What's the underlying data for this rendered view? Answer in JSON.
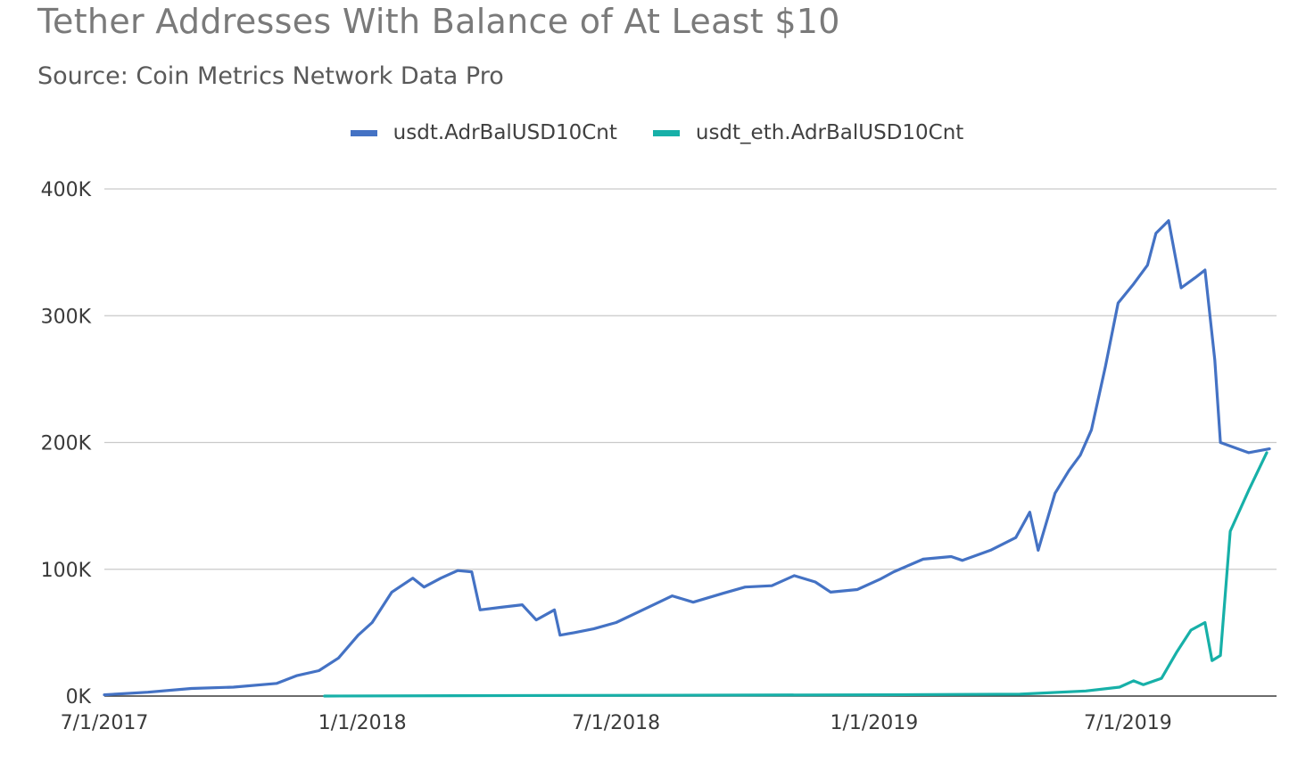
{
  "chart_data": {
    "type": "line",
    "title": "Tether Addresses With Balance of At Least $10",
    "subtitle": "Source: Coin Metrics Network Data Pro",
    "legend_position": "top-center",
    "grid": true,
    "y_ticks": [
      {
        "value": 0,
        "label": "0K"
      },
      {
        "value": 100000,
        "label": "100K"
      },
      {
        "value": 200000,
        "label": "200K"
      },
      {
        "value": 300000,
        "label": "300K"
      },
      {
        "value": 400000,
        "label": "400K"
      }
    ],
    "x_ticks": [
      {
        "value": "2017-07-01",
        "label": "7/1/2017"
      },
      {
        "value": "2018-01-01",
        "label": "1/1/2018"
      },
      {
        "value": "2018-07-01",
        "label": "7/1/2018"
      },
      {
        "value": "2019-01-01",
        "label": "1/1/2019"
      },
      {
        "value": "2019-07-01",
        "label": "7/1/2019"
      }
    ],
    "xlim": [
      "2017-07-01",
      "2019-10-15"
    ],
    "ylim": [
      0,
      400000
    ],
    "series": [
      {
        "name": "usdt.AdrBalUSD10Cnt",
        "color": "#4472c4",
        "points": [
          [
            "2017-07-01",
            1000
          ],
          [
            "2017-08-01",
            3000
          ],
          [
            "2017-09-01",
            6000
          ],
          [
            "2017-10-01",
            7000
          ],
          [
            "2017-11-01",
            10000
          ],
          [
            "2017-11-15",
            16000
          ],
          [
            "2017-12-01",
            20000
          ],
          [
            "2017-12-15",
            30000
          ],
          [
            "2017-12-29",
            48000
          ],
          [
            "2018-01-08",
            58000
          ],
          [
            "2018-01-22",
            82000
          ],
          [
            "2018-02-06",
            93000
          ],
          [
            "2018-02-14",
            86000
          ],
          [
            "2018-02-26",
            93000
          ],
          [
            "2018-03-10",
            99000
          ],
          [
            "2018-03-20",
            98000
          ],
          [
            "2018-03-26",
            68000
          ],
          [
            "2018-04-10",
            70000
          ],
          [
            "2018-04-25",
            72000
          ],
          [
            "2018-05-05",
            60000
          ],
          [
            "2018-05-18",
            68000
          ],
          [
            "2018-05-22",
            48000
          ],
          [
            "2018-06-01",
            50000
          ],
          [
            "2018-06-15",
            53000
          ],
          [
            "2018-07-01",
            58000
          ],
          [
            "2018-07-20",
            68000
          ],
          [
            "2018-08-10",
            79000
          ],
          [
            "2018-08-25",
            74000
          ],
          [
            "2018-09-15",
            81000
          ],
          [
            "2018-10-01",
            86000
          ],
          [
            "2018-10-20",
            87000
          ],
          [
            "2018-11-05",
            95000
          ],
          [
            "2018-11-20",
            90000
          ],
          [
            "2018-12-01",
            82000
          ],
          [
            "2018-12-20",
            84000
          ],
          [
            "2019-01-05",
            92000
          ],
          [
            "2019-01-15",
            98000
          ],
          [
            "2019-02-05",
            108000
          ],
          [
            "2019-02-25",
            110000
          ],
          [
            "2019-03-05",
            107000
          ],
          [
            "2019-03-25",
            115000
          ],
          [
            "2019-04-12",
            125000
          ],
          [
            "2019-04-22",
            145000
          ],
          [
            "2019-04-28",
            115000
          ],
          [
            "2019-05-10",
            160000
          ],
          [
            "2019-05-20",
            178000
          ],
          [
            "2019-05-28",
            190000
          ],
          [
            "2019-06-05",
            210000
          ],
          [
            "2019-06-15",
            260000
          ],
          [
            "2019-06-24",
            310000
          ],
          [
            "2019-07-05",
            325000
          ],
          [
            "2019-07-15",
            340000
          ],
          [
            "2019-07-21",
            365000
          ],
          [
            "2019-07-30",
            375000
          ],
          [
            "2019-08-08",
            322000
          ],
          [
            "2019-08-18",
            330000
          ],
          [
            "2019-08-25",
            336000
          ],
          [
            "2019-09-01",
            265000
          ],
          [
            "2019-09-05",
            200000
          ],
          [
            "2019-09-25",
            192000
          ],
          [
            "2019-10-10",
            195000
          ]
        ]
      },
      {
        "name": "usdt_eth.AdrBalUSD10Cnt",
        "color": "#17b0a8",
        "points": [
          [
            "2017-12-05",
            0
          ],
          [
            "2018-06-01",
            500
          ],
          [
            "2019-01-01",
            1000
          ],
          [
            "2019-04-15",
            1500
          ],
          [
            "2019-06-01",
            4000
          ],
          [
            "2019-06-25",
            7000
          ],
          [
            "2019-07-05",
            12000
          ],
          [
            "2019-07-12",
            9000
          ],
          [
            "2019-07-25",
            14000
          ],
          [
            "2019-08-05",
            35000
          ],
          [
            "2019-08-15",
            52000
          ],
          [
            "2019-08-25",
            58000
          ],
          [
            "2019-08-30",
            28000
          ],
          [
            "2019-09-05",
            32000
          ],
          [
            "2019-09-12",
            130000
          ],
          [
            "2019-09-25",
            162000
          ],
          [
            "2019-10-08",
            192000
          ]
        ]
      }
    ]
  }
}
